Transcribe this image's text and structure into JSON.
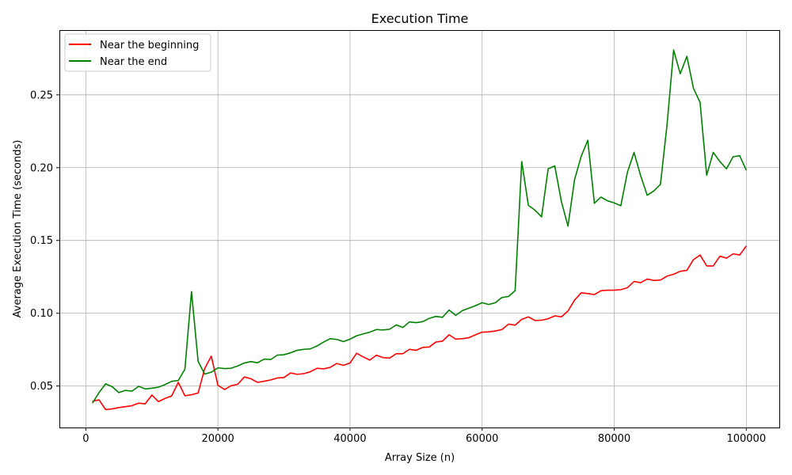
{
  "chart_data": {
    "type": "line",
    "title": "Execution Time",
    "xlabel": "Array Size (n)",
    "ylabel": "Average Execution Time (seconds)",
    "xlim": [
      -4000,
      105000
    ],
    "ylim": [
      0.0215,
      0.2945
    ],
    "xticks": [
      0,
      20000,
      40000,
      60000,
      80000,
      100000
    ],
    "xtick_labels": [
      "0",
      "20000",
      "40000",
      "60000",
      "80000",
      "100000"
    ],
    "yticks": [
      0.05,
      0.1,
      0.15,
      0.2,
      0.25
    ],
    "ytick_labels": [
      "0.05",
      "0.10",
      "0.15",
      "0.20",
      "0.25"
    ],
    "grid": true,
    "legend_position": "top-left",
    "x": [
      1000,
      2000,
      3000,
      4000,
      5000,
      6000,
      7000,
      8000,
      9000,
      10000,
      11000,
      12000,
      13000,
      14000,
      15000,
      16000,
      17000,
      18000,
      19000,
      20000,
      21000,
      22000,
      23000,
      24000,
      25000,
      26000,
      27000,
      28000,
      29000,
      30000,
      31000,
      32000,
      33000,
      34000,
      35000,
      36000,
      37000,
      38000,
      39000,
      40000,
      41000,
      42000,
      43000,
      44000,
      45000,
      46000,
      47000,
      48000,
      49000,
      50000,
      51000,
      52000,
      53000,
      54000,
      55000,
      56000,
      57000,
      58000,
      59000,
      60000,
      61000,
      62000,
      63000,
      64000,
      65000,
      66000,
      67000,
      68000,
      69000,
      70000,
      71000,
      72000,
      73000,
      74000,
      75000,
      76000,
      77000,
      78000,
      79000,
      80000,
      81000,
      82000,
      83000,
      84000,
      85000,
      86000,
      87000,
      88000,
      89000,
      90000,
      91000,
      92000,
      93000,
      94000,
      95000,
      96000,
      97000,
      98000,
      99000,
      100000
    ],
    "series": [
      {
        "name": "Near the beginning",
        "color": "#ff0000",
        "values": [
          0.0395,
          0.0405,
          0.0338,
          0.0343,
          0.0352,
          0.0358,
          0.0365,
          0.0382,
          0.0378,
          0.0438,
          0.0393,
          0.0415,
          0.0432,
          0.0525,
          0.0433,
          0.044,
          0.0452,
          0.062,
          0.0705,
          0.0505,
          0.0476,
          0.0502,
          0.0512,
          0.0562,
          0.055,
          0.0525,
          0.0533,
          0.0542,
          0.0555,
          0.0558,
          0.059,
          0.058,
          0.0585,
          0.0598,
          0.0622,
          0.0618,
          0.0628,
          0.0655,
          0.0642,
          0.0658,
          0.0725,
          0.07,
          0.0678,
          0.0712,
          0.0695,
          0.0692,
          0.0722,
          0.0722,
          0.0752,
          0.0745,
          0.0765,
          0.0768,
          0.0802,
          0.0808,
          0.0852,
          0.0822,
          0.0825,
          0.0832,
          0.0852,
          0.087,
          0.0872,
          0.0878,
          0.0888,
          0.0925,
          0.0918,
          0.0958,
          0.0975,
          0.095,
          0.0952,
          0.0962,
          0.0982,
          0.0975,
          0.1015,
          0.109,
          0.114,
          0.1135,
          0.1128,
          0.1155,
          0.1158,
          0.1158,
          0.1162,
          0.1175,
          0.1218,
          0.121,
          0.1235,
          0.1225,
          0.1228,
          0.1255,
          0.1268,
          0.1288,
          0.1295,
          0.1368,
          0.14,
          0.1325,
          0.1325,
          0.1392,
          0.1378,
          0.1408,
          0.14,
          0.1462
        ]
      },
      {
        "name": "Near the end",
        "color": "#008000",
        "values": [
          0.0382,
          0.0455,
          0.0515,
          0.0495,
          0.0455,
          0.047,
          0.0465,
          0.0498,
          0.048,
          0.0485,
          0.0492,
          0.051,
          0.0532,
          0.0538,
          0.0615,
          0.1148,
          0.067,
          0.0582,
          0.0595,
          0.0625,
          0.062,
          0.0622,
          0.0638,
          0.0658,
          0.0668,
          0.066,
          0.0685,
          0.0682,
          0.0712,
          0.0715,
          0.0728,
          0.0745,
          0.0752,
          0.0755,
          0.0775,
          0.0802,
          0.0825,
          0.082,
          0.0805,
          0.0822,
          0.0845,
          0.0858,
          0.087,
          0.0888,
          0.0885,
          0.089,
          0.092,
          0.0902,
          0.094,
          0.0935,
          0.0942,
          0.0965,
          0.0978,
          0.0972,
          0.1022,
          0.0985,
          0.1018,
          0.1035,
          0.1052,
          0.1072,
          0.106,
          0.1072,
          0.1108,
          0.1115,
          0.1155,
          0.2042,
          0.1742,
          0.1708,
          0.1662,
          0.1992,
          0.2012,
          0.1768,
          0.1598,
          0.1918,
          0.2078,
          0.2188,
          0.1755,
          0.1798,
          0.1772,
          0.1758,
          0.1738,
          0.1968,
          0.2105,
          0.1945,
          0.181,
          0.184,
          0.1885,
          0.2295,
          0.2808,
          0.2645,
          0.2765,
          0.2545,
          0.2448,
          0.1948,
          0.2105,
          0.2042,
          0.1992,
          0.2075,
          0.2082,
          0.1982
        ]
      }
    ]
  }
}
